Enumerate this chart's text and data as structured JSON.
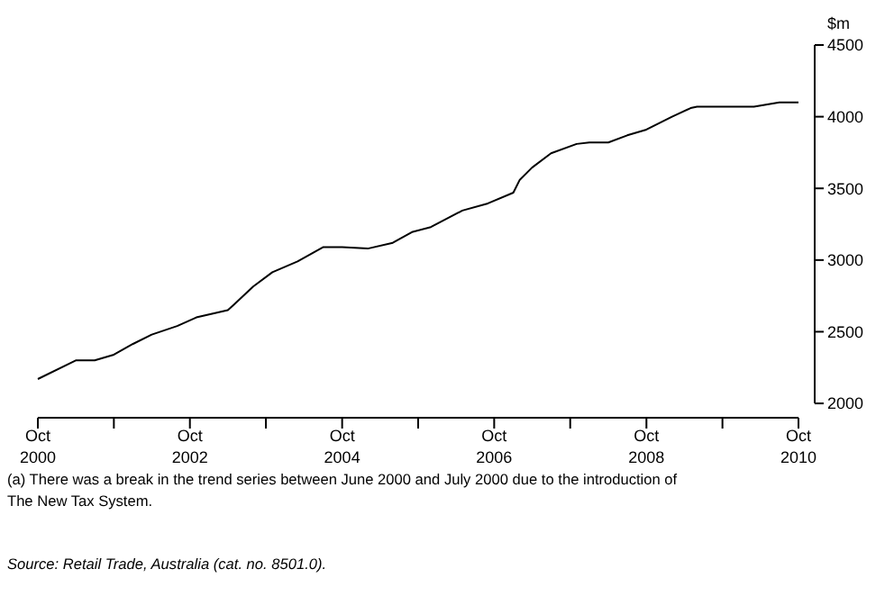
{
  "chart_data": {
    "type": "line",
    "ylabel": "$m",
    "x": [
      "2000-10",
      "2001-04",
      "2001-07",
      "2001-10",
      "2002-01",
      "2002-04",
      "2002-08",
      "2002-11",
      "2003-04",
      "2003-05",
      "2003-08",
      "2003-11",
      "2004-03",
      "2004-07",
      "2004-10",
      "2005-02",
      "2005-06",
      "2005-09",
      "2005-12",
      "2006-05",
      "2006-09",
      "2007-01",
      "2007-02",
      "2007-04",
      "2007-07",
      "2007-11",
      "2008-01",
      "2008-04",
      "2008-07",
      "2008-10",
      "2009-02",
      "2009-05",
      "2009-06",
      "2010-03",
      "2010-07",
      "2010-10"
    ],
    "series": [
      {
        "color": "#000000",
        "values": [
          2170,
          2300,
          2300,
          2340,
          2415,
          2480,
          2540,
          2600,
          2650,
          2690,
          2815,
          2915,
          2990,
          3090,
          3090,
          3080,
          3120,
          3195,
          3230,
          3345,
          3395,
          3470,
          3560,
          3645,
          3745,
          3810,
          3820,
          3820,
          3870,
          3910,
          4000,
          4060,
          4070,
          4070,
          4100,
          4100
        ]
      }
    ],
    "xlim": [
      "2000-10",
      "2010-10"
    ],
    "xticks": [
      {
        "value": "2000-10",
        "label": "Oct 2000"
      },
      {
        "value": "2001-10",
        "label": null
      },
      {
        "value": "2002-10",
        "label": "Oct 2002"
      },
      {
        "value": "2003-10",
        "label": null
      },
      {
        "value": "2004-10",
        "label": "Oct 2004"
      },
      {
        "value": "2005-10",
        "label": null
      },
      {
        "value": "2006-10",
        "label": "Oct 2006"
      },
      {
        "value": "2007-10",
        "label": null
      },
      {
        "value": "2008-10",
        "label": "Oct 2008"
      },
      {
        "value": "2009-10",
        "label": null
      },
      {
        "value": "2010-10",
        "label": "Oct 2010"
      }
    ],
    "ylim": [
      1900,
      4500
    ],
    "yticks": [
      2000,
      2500,
      3000,
      3500,
      4000,
      4500
    ],
    "grid": false,
    "marker": "none",
    "line_style": "solid",
    "annotations": [
      "(a) There was a break in the trend series between June 2000 and July 2000 due to the introduction of The New Tax System.",
      "Source: Retail Trade, Australia (cat. no. 8501.0)."
    ]
  }
}
